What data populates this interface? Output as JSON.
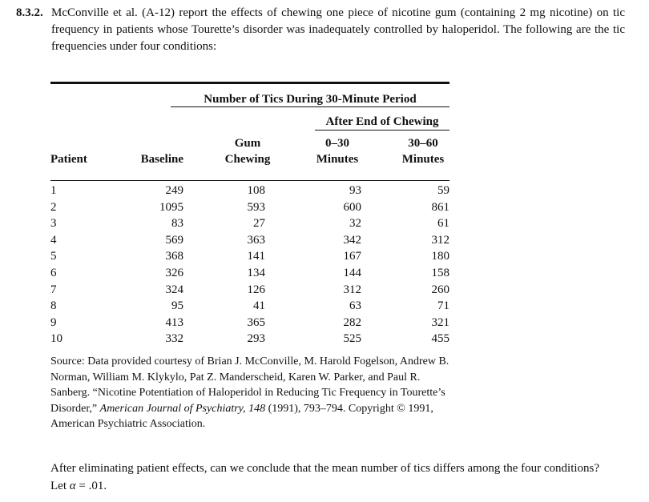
{
  "problem": {
    "number": "8.3.2.",
    "text": "McConville et al. (A-12) report the effects of chewing one piece of nicotine gum (containing 2 mg nicotine) on tic frequency in patients whose Tourette’s disorder was inadequately controlled by haloperidol. The following are the tic frequencies under four conditions:"
  },
  "table": {
    "span_header": "Number of Tics During 30-Minute Period",
    "sub_span_header": "After End of Chewing",
    "col_patient": "Patient",
    "col_baseline": "Baseline",
    "col_gum_line1": "Gum",
    "col_gum_line2": "Chewing",
    "col_030_line1": "0–30",
    "col_030_line2": "Minutes",
    "col_3060_line1": "30–60",
    "col_3060_line2": "Minutes",
    "rows": [
      {
        "patient": "1",
        "baseline": "249",
        "gum": "108",
        "a030": "93",
        "a3060": "59"
      },
      {
        "patient": "2",
        "baseline": "1095",
        "gum": "593",
        "a030": "600",
        "a3060": "861"
      },
      {
        "patient": "3",
        "baseline": "83",
        "gum": "27",
        "a030": "32",
        "a3060": "61"
      },
      {
        "patient": "4",
        "baseline": "569",
        "gum": "363",
        "a030": "342",
        "a3060": "312"
      },
      {
        "patient": "5",
        "baseline": "368",
        "gum": "141",
        "a030": "167",
        "a3060": "180"
      },
      {
        "patient": "6",
        "baseline": "326",
        "gum": "134",
        "a030": "144",
        "a3060": "158"
      },
      {
        "patient": "7",
        "baseline": "324",
        "gum": "126",
        "a030": "312",
        "a3060": "260"
      },
      {
        "patient": "8",
        "baseline": "95",
        "gum": "41",
        "a030": "63",
        "a3060": "71"
      },
      {
        "patient": "9",
        "baseline": "413",
        "gum": "365",
        "a030": "282",
        "a3060": "321"
      },
      {
        "patient": "10",
        "baseline": "332",
        "gum": "293",
        "a030": "525",
        "a3060": "455"
      }
    ]
  },
  "source": {
    "pre": "Source: Data provided courtesy of Brian J. McConville, M. Harold Fogelson, Andrew B. Norman, William M. Klykylo, Pat Z. Manderscheid, Karen W. Parker, and Paul R. Sanberg. “Nicotine Potentiation of Haloperidol in Reducing Tic Frequency in Tourette’s Disorder,”",
    "journal": "American Journal of Psychiatry, 148",
    "post": "(1991), 793–794. Copyright © 1991, American Psychiatric Association."
  },
  "question": {
    "pre": "After eliminating patient effects, can we conclude that the mean number of tics differs among the four conditions? Let",
    "alpha": "α",
    "post": "= .01."
  }
}
